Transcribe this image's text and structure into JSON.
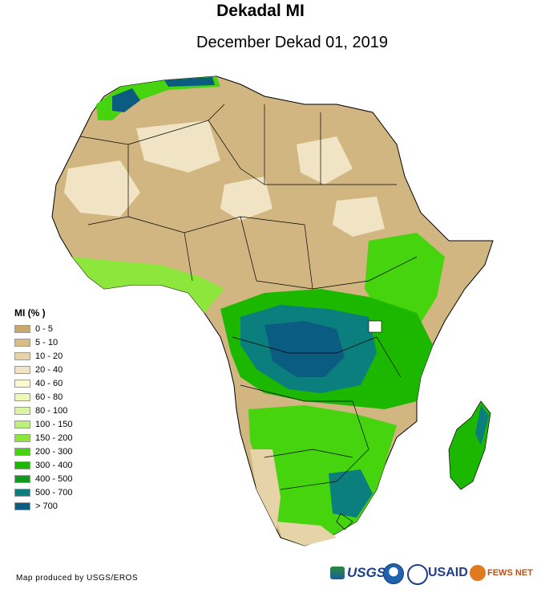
{
  "map": {
    "title": "Dekadal MI",
    "subtitle": "December Dekad 01, 2019",
    "colors": {
      "ocean": "#ffffff",
      "dry": "#d2b682",
      "border": "#000000"
    }
  },
  "legend": {
    "title": "MI (% )",
    "items": [
      {
        "label": "0 - 5",
        "color": "#c8a96a"
      },
      {
        "label": "5 - 10",
        "color": "#d7bc86"
      },
      {
        "label": "10 - 20",
        "color": "#e6d3a8"
      },
      {
        "label": "20 - 40",
        "color": "#f0e4c4"
      },
      {
        "label": "40 - 60",
        "color": "#fbf9cf"
      },
      {
        "label": "60 - 80",
        "color": "#eef7b3"
      },
      {
        "label": "80 - 100",
        "color": "#dcf5a4"
      },
      {
        "label": "100 - 150",
        "color": "#bdf07a"
      },
      {
        "label": "150 - 200",
        "color": "#8de63c"
      },
      {
        "label": "200 - 300",
        "color": "#45d40e"
      },
      {
        "label": "300 - 400",
        "color": "#1cb800"
      },
      {
        "label": "400 - 500",
        "color": "#0e9a1a"
      },
      {
        "label": "500 - 700",
        "color": "#0b7f7d"
      },
      {
        "label": "> 700",
        "color": "#0a5d80"
      }
    ]
  },
  "footer": {
    "credit": "Map produced by USGS/EROS",
    "logos": {
      "usgs": "USGS",
      "usaid": "USAID",
      "fewsnet": "FEWS NET"
    }
  }
}
